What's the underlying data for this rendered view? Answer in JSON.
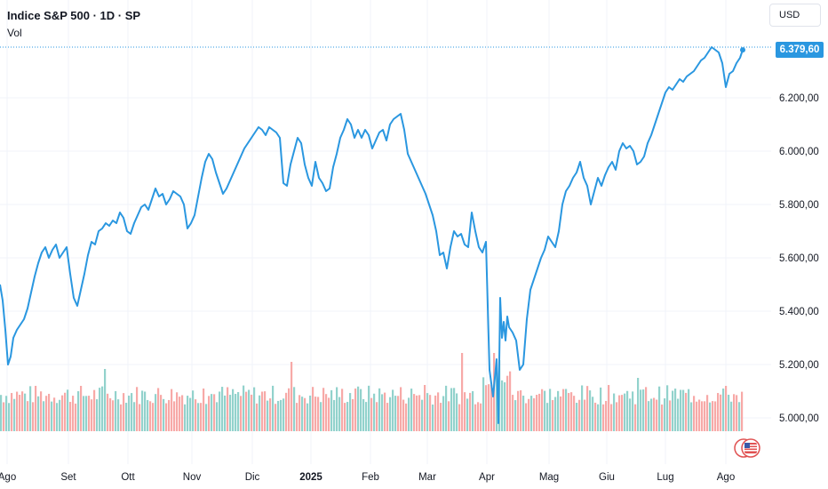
{
  "header": {
    "title": "Indice S&P 500 · 1D · SP",
    "volume_label": "Vol"
  },
  "currency_label": "USD",
  "last_price_label": "6.379,60",
  "colors": {
    "line": "#2a97e0",
    "volume_up": "#92d2cc",
    "volume_down": "#f7a9a7",
    "grid": "#f0f3fa",
    "price_tag": "#2a97e0"
  },
  "chart_data": {
    "type": "line",
    "series": [
      {
        "values": [
          [
            0,
            5500
          ],
          [
            3,
            5440
          ],
          [
            6,
            5330
          ],
          [
            9,
            5200
          ],
          [
            12,
            5230
          ],
          [
            15,
            5300
          ],
          [
            19,
            5330
          ],
          [
            23,
            5350
          ],
          [
            27,
            5370
          ],
          [
            31,
            5410
          ],
          [
            35,
            5470
          ],
          [
            39,
            5530
          ],
          [
            43,
            5580
          ],
          [
            47,
            5620
          ],
          [
            51,
            5640
          ],
          [
            55,
            5600
          ],
          [
            59,
            5630
          ],
          [
            63,
            5650
          ],
          [
            67,
            5600
          ],
          [
            71,
            5620
          ],
          [
            75,
            5640
          ],
          [
            79,
            5540
          ],
          [
            83,
            5450
          ],
          [
            87,
            5420
          ],
          [
            91,
            5480
          ],
          [
            95,
            5540
          ],
          [
            99,
            5610
          ],
          [
            103,
            5660
          ],
          [
            107,
            5650
          ],
          [
            111,
            5700
          ],
          [
            115,
            5710
          ],
          [
            119,
            5730
          ],
          [
            123,
            5720
          ],
          [
            127,
            5740
          ],
          [
            131,
            5730
          ],
          [
            135,
            5770
          ],
          [
            139,
            5750
          ],
          [
            143,
            5700
          ],
          [
            147,
            5690
          ],
          [
            151,
            5730
          ],
          [
            155,
            5760
          ],
          [
            159,
            5790
          ],
          [
            163,
            5800
          ],
          [
            167,
            5780
          ],
          [
            171,
            5820
          ],
          [
            175,
            5860
          ],
          [
            179,
            5830
          ],
          [
            183,
            5840
          ],
          [
            187,
            5800
          ],
          [
            191,
            5820
          ],
          [
            195,
            5850
          ],
          [
            199,
            5840
          ],
          [
            203,
            5830
          ],
          [
            207,
            5800
          ],
          [
            211,
            5710
          ],
          [
            215,
            5730
          ],
          [
            219,
            5760
          ],
          [
            223,
            5830
          ],
          [
            227,
            5900
          ],
          [
            231,
            5960
          ],
          [
            235,
            5990
          ],
          [
            239,
            5970
          ],
          [
            243,
            5920
          ],
          [
            247,
            5880
          ],
          [
            251,
            5840
          ],
          [
            255,
            5860
          ],
          [
            259,
            5890
          ],
          [
            263,
            5920
          ],
          [
            267,
            5950
          ],
          [
            271,
            5980
          ],
          [
            275,
            6010
          ],
          [
            279,
            6030
          ],
          [
            283,
            6050
          ],
          [
            287,
            6070
          ],
          [
            291,
            6090
          ],
          [
            295,
            6080
          ],
          [
            299,
            6060
          ],
          [
            303,
            6090
          ],
          [
            307,
            6080
          ],
          [
            311,
            6070
          ],
          [
            315,
            6050
          ],
          [
            319,
            5880
          ],
          [
            323,
            5870
          ],
          [
            327,
            5950
          ],
          [
            331,
            6000
          ],
          [
            335,
            6050
          ],
          [
            339,
            6030
          ],
          [
            343,
            5950
          ],
          [
            347,
            5900
          ],
          [
            351,
            5870
          ],
          [
            355,
            5960
          ],
          [
            359,
            5900
          ],
          [
            363,
            5880
          ],
          [
            367,
            5850
          ],
          [
            371,
            5860
          ],
          [
            375,
            5940
          ],
          [
            379,
            5990
          ],
          [
            383,
            6050
          ],
          [
            387,
            6080
          ],
          [
            391,
            6120
          ],
          [
            395,
            6100
          ],
          [
            399,
            6050
          ],
          [
            403,
            6080
          ],
          [
            407,
            6050
          ],
          [
            411,
            6080
          ],
          [
            415,
            6060
          ],
          [
            419,
            6010
          ],
          [
            423,
            6040
          ],
          [
            427,
            6070
          ],
          [
            431,
            6080
          ],
          [
            435,
            6040
          ],
          [
            439,
            6100
          ],
          [
            443,
            6120
          ],
          [
            447,
            6130
          ],
          [
            451,
            6140
          ],
          [
            455,
            6080
          ],
          [
            459,
            5990
          ],
          [
            463,
            5960
          ],
          [
            467,
            5930
          ],
          [
            471,
            5900
          ],
          [
            475,
            5870
          ],
          [
            479,
            5840
          ],
          [
            483,
            5800
          ],
          [
            487,
            5760
          ],
          [
            491,
            5700
          ],
          [
            495,
            5610
          ],
          [
            499,
            5620
          ],
          [
            503,
            5560
          ],
          [
            507,
            5640
          ],
          [
            511,
            5700
          ],
          [
            515,
            5680
          ],
          [
            519,
            5690
          ],
          [
            523,
            5650
          ],
          [
            527,
            5640
          ],
          [
            531,
            5770
          ],
          [
            535,
            5700
          ],
          [
            539,
            5640
          ],
          [
            543,
            5620
          ],
          [
            547,
            5660
          ],
          [
            551,
            5180
          ],
          [
            555,
            5080
          ],
          [
            559,
            5220
          ],
          [
            561,
            4980
          ],
          [
            563,
            5450
          ],
          [
            565,
            5300
          ],
          [
            567,
            5360
          ],
          [
            569,
            5290
          ],
          [
            571,
            5380
          ],
          [
            573,
            5340
          ],
          [
            577,
            5320
          ],
          [
            581,
            5290
          ],
          [
            585,
            5180
          ],
          [
            589,
            5200
          ],
          [
            593,
            5370
          ],
          [
            597,
            5480
          ],
          [
            601,
            5520
          ],
          [
            605,
            5560
          ],
          [
            609,
            5600
          ],
          [
            613,
            5630
          ],
          [
            617,
            5680
          ],
          [
            621,
            5660
          ],
          [
            625,
            5640
          ],
          [
            629,
            5700
          ],
          [
            633,
            5800
          ],
          [
            637,
            5850
          ],
          [
            641,
            5870
          ],
          [
            645,
            5900
          ],
          [
            649,
            5920
          ],
          [
            653,
            5960
          ],
          [
            657,
            5900
          ],
          [
            661,
            5870
          ],
          [
            665,
            5800
          ],
          [
            669,
            5850
          ],
          [
            673,
            5900
          ],
          [
            677,
            5870
          ],
          [
            681,
            5910
          ],
          [
            685,
            5940
          ],
          [
            689,
            5960
          ],
          [
            693,
            5930
          ],
          [
            697,
            6000
          ],
          [
            701,
            6030
          ],
          [
            705,
            6010
          ],
          [
            709,
            6020
          ],
          [
            713,
            6000
          ],
          [
            717,
            5950
          ],
          [
            721,
            5960
          ],
          [
            725,
            5980
          ],
          [
            729,
            6030
          ],
          [
            733,
            6060
          ],
          [
            737,
            6100
          ],
          [
            741,
            6140
          ],
          [
            745,
            6180
          ],
          [
            749,
            6220
          ],
          [
            753,
            6240
          ],
          [
            757,
            6230
          ],
          [
            761,
            6250
          ],
          [
            765,
            6270
          ],
          [
            769,
            6260
          ],
          [
            773,
            6280
          ],
          [
            777,
            6290
          ],
          [
            781,
            6300
          ],
          [
            785,
            6320
          ],
          [
            789,
            6340
          ],
          [
            793,
            6350
          ],
          [
            797,
            6370
          ],
          [
            801,
            6390
          ],
          [
            805,
            6380
          ],
          [
            809,
            6370
          ],
          [
            813,
            6330
          ],
          [
            817,
            6240
          ],
          [
            821,
            6290
          ],
          [
            825,
            6300
          ],
          [
            829,
            6330
          ],
          [
            833,
            6350
          ],
          [
            836,
            6380
          ]
        ]
      }
    ],
    "y_ticks": [
      "6.200,00",
      "6.000,00",
      "5.800,00",
      "5.600,00",
      "5.400,00",
      "5.200,00",
      "5.000,00"
    ],
    "y_tick_values": [
      6200,
      6000,
      5800,
      5600,
      5400,
      5200,
      5000
    ],
    "ylim": [
      4900,
      6400
    ],
    "x_ticks": [
      "Ago",
      "Set",
      "Ott",
      "Nov",
      "Dic",
      "2025",
      "Feb",
      "Mar",
      "Apr",
      "Mag",
      "Giu",
      "Lug",
      "Ago"
    ],
    "x_tick_positions": [
      8,
      77,
      144,
      216,
      284,
      350,
      417,
      481,
      548,
      618,
      683,
      749,
      817
    ],
    "last_value": 6379.6,
    "volume": {
      "up_color": "#92d2cc",
      "down_color": "#f7a9a7"
    }
  }
}
